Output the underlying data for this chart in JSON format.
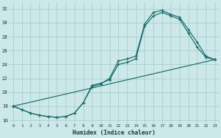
{
  "xlabel": "Humidex (Indice chaleur)",
  "bg_color": "#cce8e8",
  "grid_color": "#aacccc",
  "line_color": "#1a6b6b",
  "line1_x": [
    0,
    1,
    2,
    3,
    4,
    5,
    6,
    7,
    8,
    9,
    10,
    11,
    12,
    13,
    14,
    15,
    16,
    17,
    18,
    19,
    20,
    21,
    22,
    23
  ],
  "line1_y": [
    18.0,
    17.5,
    17.0,
    16.7,
    16.5,
    16.4,
    16.5,
    17.0,
    18.5,
    20.8,
    21.2,
    22.0,
    24.5,
    24.8,
    25.2,
    29.8,
    31.5,
    31.8,
    31.2,
    30.8,
    29.0,
    27.2,
    25.2,
    24.7
  ],
  "line2_x": [
    0,
    1,
    2,
    3,
    4,
    5,
    6,
    7,
    8,
    9,
    10,
    11,
    12,
    13,
    14,
    15,
    16,
    17,
    18,
    19,
    20,
    21,
    22,
    23
  ],
  "line2_y": [
    18.0,
    17.5,
    17.0,
    16.7,
    16.5,
    16.4,
    16.5,
    17.0,
    18.5,
    21.0,
    21.3,
    21.8,
    24.0,
    24.3,
    24.8,
    29.5,
    31.0,
    31.5,
    31.0,
    30.5,
    28.5,
    26.5,
    25.0,
    24.7
  ],
  "line3_x": [
    0,
    23
  ],
  "line3_y": [
    18.0,
    24.7
  ],
  "xlim": [
    -0.5,
    23.5
  ],
  "ylim": [
    15.5,
    33.0
  ],
  "yticks": [
    16,
    18,
    20,
    22,
    24,
    26,
    28,
    30,
    32
  ],
  "xticks": [
    0,
    1,
    2,
    3,
    4,
    5,
    6,
    7,
    8,
    9,
    10,
    11,
    12,
    13,
    14,
    15,
    16,
    17,
    18,
    19,
    20,
    21,
    22,
    23
  ]
}
